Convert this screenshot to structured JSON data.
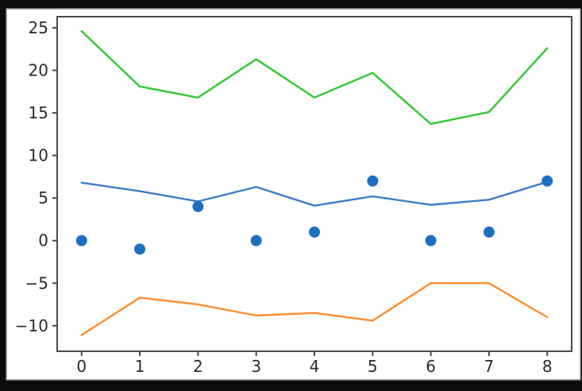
{
  "window": {
    "description": "matplotlib line and scatter figure on black background",
    "background_color": "#0b0b0b",
    "figure_background_color": "#ffffff",
    "figure_border_color": "#8e8e8e",
    "axes_spine_color": "#4a4a4a",
    "tick_label_color": "#2b2b2b"
  },
  "chart_data": {
    "type": "line",
    "title": "",
    "xlabel": "",
    "ylabel": "",
    "grid": false,
    "legend": null,
    "x": [
      0,
      1,
      2,
      3,
      4,
      5,
      6,
      7,
      8
    ],
    "series": [
      {
        "name": "upper-green-line",
        "type": "line",
        "color": "#32c832",
        "values": [
          24.6,
          18.1,
          16.8,
          21.3,
          16.8,
          19.7,
          13.7,
          15.1,
          22.6
        ]
      },
      {
        "name": "middle-blue-line",
        "type": "line",
        "color": "#3d7dc8",
        "values": [
          6.8,
          5.8,
          4.6,
          6.3,
          4.1,
          5.2,
          4.2,
          4.8,
          6.9
        ]
      },
      {
        "name": "lower-orange-line",
        "type": "line",
        "color": "#ff8c2e",
        "values": [
          -11.1,
          -6.7,
          -7.5,
          -8.8,
          -8.5,
          -9.4,
          -5.0,
          -5.0,
          -9.0
        ]
      },
      {
        "name": "blue-scatter-points",
        "type": "scatter",
        "color": "#1f6fc0",
        "values": [
          0,
          -1,
          4,
          0,
          1,
          7,
          0,
          1,
          7
        ]
      }
    ],
    "xlim": [
      -0.42,
      8.42
    ],
    "ylim": [
      -13.0,
      26.3
    ],
    "xtick_values": [
      0,
      1,
      2,
      3,
      4,
      5,
      6,
      7,
      8
    ],
    "xtick_labels": [
      "0",
      "1",
      "2",
      "3",
      "4",
      "5",
      "6",
      "7",
      "8"
    ],
    "ytick_values": [
      -10,
      -5,
      0,
      5,
      10,
      15,
      20,
      25
    ],
    "ytick_labels": [
      "−10",
      "−5",
      "0",
      "5",
      "10",
      "15",
      "20",
      "25"
    ]
  }
}
